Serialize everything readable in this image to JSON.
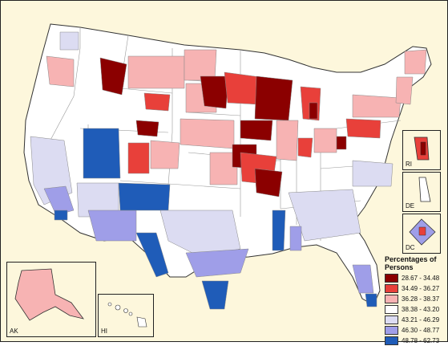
{
  "legend": {
    "title": "Percentages of Persons",
    "items": [
      {
        "label": "28.67 - 34.48",
        "color": "#8b0000"
      },
      {
        "label": "34.49 - 36.27",
        "color": "#e8403a"
      },
      {
        "label": "36.28 - 38.37",
        "color": "#f7b3b3"
      },
      {
        "label": "38.38 - 43.20",
        "color": "#ffffff"
      },
      {
        "label": "43.21 - 46.29",
        "color": "#dcdcf2"
      },
      {
        "label": "46.30 - 48.77",
        "color": "#9f9ee8"
      },
      {
        "label": "48.78 - 62.73",
        "color": "#1f5cb8"
      }
    ]
  },
  "insets": {
    "ak": "AK",
    "hi": "HI",
    "ri": "RI",
    "de": "DE",
    "dc": "DC"
  },
  "colors": {
    "background": "#fdf7dc",
    "border": "#222222",
    "region_line": "#888888"
  }
}
